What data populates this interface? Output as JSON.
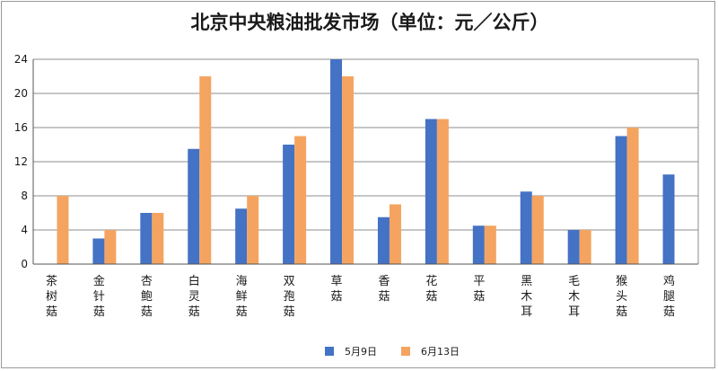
{
  "chart_data": {
    "type": "bar",
    "title": "北京中央粮油批发市场（单位：元／公斤）",
    "categories": [
      "茶树菇",
      "金针菇",
      "杏鲍菇",
      "白灵菇",
      "海鲜菇",
      "双孢菇",
      "草菇",
      "香菇",
      "花菇",
      "平菇",
      "黑木耳",
      "毛木耳",
      "猴头菇",
      "鸡腿菇"
    ],
    "series": [
      {
        "name": "5月9日",
        "color": "#4472c4",
        "values": [
          null,
          3,
          6,
          13.5,
          6.5,
          14,
          24,
          5.5,
          17,
          4.5,
          8.5,
          4,
          15,
          10.5
        ]
      },
      {
        "name": "6月13日",
        "color": "#f4a460",
        "values": [
          8,
          4,
          6,
          22,
          8,
          15,
          22,
          7,
          17,
          4.5,
          8,
          4,
          16,
          null
        ]
      }
    ],
    "yticks": [
      0,
      4,
      8,
      12,
      16,
      20,
      24
    ],
    "ylim": [
      0,
      24
    ],
    "grid": true,
    "legend_position": "bottom-center"
  }
}
